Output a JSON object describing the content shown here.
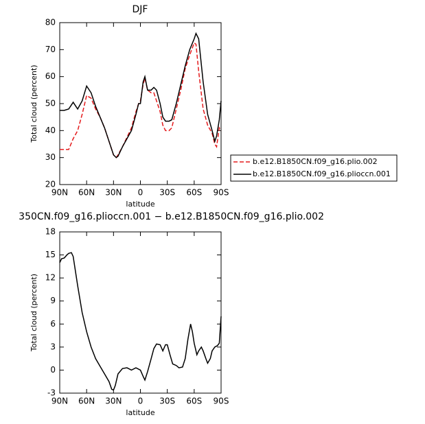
{
  "chart_data": [
    {
      "type": "line",
      "title": "DJF",
      "x_label": "latitude",
      "y_label": "Total cloud (percent)",
      "x": [
        90,
        85,
        80,
        75,
        70,
        65,
        60,
        55,
        50,
        45,
        40,
        35,
        30,
        27,
        25,
        20,
        15,
        10,
        5,
        2,
        0,
        -3,
        -5,
        -8,
        -12,
        -15,
        -18,
        -22,
        -25,
        -28,
        -32,
        -35,
        -40,
        -45,
        -50,
        -55,
        -60,
        -62,
        -65,
        -70,
        -75,
        -80,
        -83,
        -85,
        -88,
        -90
      ],
      "series": [
        {
          "name": "b.e12.B1850CN.f09_g16.plio.002",
          "color": "#e41a1c",
          "dashed": true,
          "values": [
            33,
            33,
            33,
            37,
            40,
            46,
            53,
            52,
            48,
            45,
            41,
            36,
            31,
            30,
            31,
            34,
            37.5,
            41,
            47,
            50,
            51,
            57,
            59.5,
            55,
            54,
            54,
            51,
            47,
            42,
            40,
            40,
            41,
            48,
            55,
            63,
            68,
            72.5,
            72,
            62,
            48,
            42,
            39,
            35,
            34,
            41,
            40
          ]
        },
        {
          "name": "b.e12.B1850CN.f09_g16.plioccn.001",
          "color": "#000000",
          "dashed": false,
          "values": [
            47.5,
            47.5,
            48,
            50.5,
            48,
            51,
            56.5,
            54,
            49,
            45,
            41,
            36,
            31,
            30,
            30.5,
            34,
            37,
            40,
            46,
            50,
            50,
            58,
            60,
            55,
            55,
            56,
            55,
            50,
            45,
            43.5,
            43.5,
            44,
            50,
            57,
            64,
            70,
            74,
            76,
            74,
            58,
            46,
            40,
            36,
            38,
            44,
            51
          ]
        }
      ],
      "xlim": [
        90,
        -90
      ],
      "xticks": [
        {
          "value": 90,
          "label": "90N"
        },
        {
          "value": 60,
          "label": "60N"
        },
        {
          "value": 30,
          "label": "30N"
        },
        0,
        {
          "value": -30,
          "label": "30S"
        },
        {
          "value": -60,
          "label": "60S"
        },
        {
          "value": -90,
          "label": "90S"
        }
      ],
      "ylim": [
        20,
        80
      ],
      "yticks": [
        20,
        30,
        40,
        50,
        60,
        70,
        80
      ],
      "legend": true
    },
    {
      "type": "line",
      "title": "350CN.f09_g16.plioccn.001 − b.e12.B1850CN.f09_g16.plio.002",
      "x_label": "latitude",
      "y_label": "Total cloud (percent)",
      "x": [
        90,
        88,
        85,
        82,
        80,
        77,
        75,
        70,
        65,
        60,
        55,
        50,
        45,
        40,
        35,
        32,
        30,
        28,
        25,
        20,
        15,
        10,
        5,
        0,
        -3,
        -5,
        -8,
        -12,
        -15,
        -18,
        -22,
        -25,
        -28,
        -30,
        -33,
        -36,
        -40,
        -43,
        -47,
        -50,
        -53,
        -56,
        -58,
        -60,
        -63,
        -65,
        -68,
        -70,
        -73,
        -75,
        -78,
        -80,
        -83,
        -86,
        -88,
        -90
      ],
      "series": [
        {
          "name": "b.e12.B1850CN.f09_g16.plioccn.001",
          "color": "#000000",
          "dashed": false,
          "values": [
            14,
            14.5,
            14.6,
            15,
            15.2,
            15.3,
            14.8,
            11,
            7.5,
            5,
            3,
            1.5,
            0.5,
            -0.5,
            -1.5,
            -2.5,
            -2.6,
            -2,
            -0.5,
            0.2,
            0.3,
            0,
            0.3,
            0,
            -0.8,
            -1.3,
            -0.2,
            1.5,
            2.8,
            3.4,
            3.3,
            2.5,
            3.3,
            3.3,
            2,
            0.8,
            0.6,
            0.3,
            0.4,
            1.5,
            4,
            6,
            5,
            3.5,
            2,
            2.5,
            3,
            2.5,
            1.5,
            0.9,
            1.5,
            2.5,
            3,
            3.2,
            3.5,
            7
          ]
        }
      ],
      "xlim": [
        90,
        -90
      ],
      "xticks": [
        {
          "value": 90,
          "label": "90N"
        },
        {
          "value": 60,
          "label": "60N"
        },
        {
          "value": 30,
          "label": "30N"
        },
        0,
        {
          "value": -30,
          "label": "30S"
        },
        {
          "value": -60,
          "label": "60S"
        },
        {
          "value": -90,
          "label": "90S"
        }
      ],
      "ylim": [
        -3,
        18
      ],
      "yticks": [
        -3,
        0,
        3,
        6,
        9,
        12,
        15,
        18
      ],
      "legend": false
    }
  ]
}
